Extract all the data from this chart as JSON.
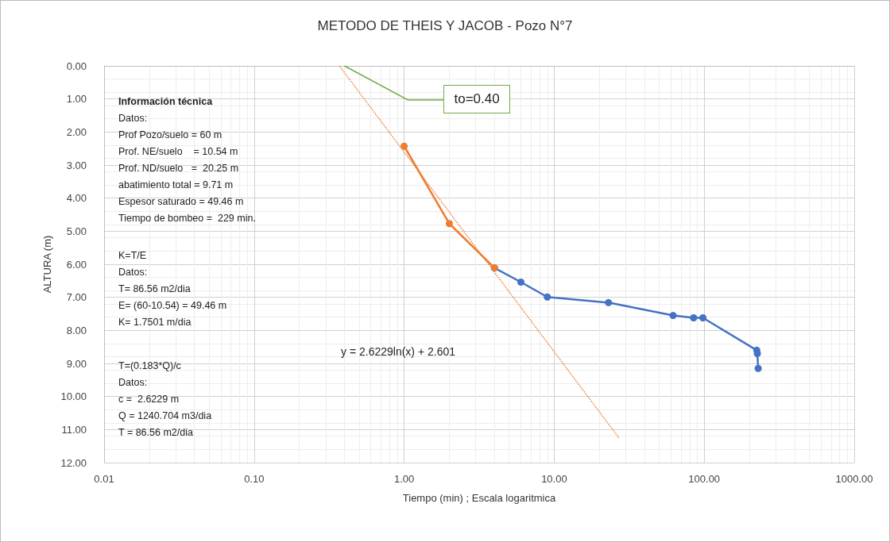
{
  "chart_data": {
    "type": "line",
    "title": "METODO DE THEIS Y JACOB - Pozo N°7",
    "xlabel": "Tiempo (min) ; Escala logaritmica",
    "ylabel": "ALTURA (m)",
    "log": "x",
    "grid": true,
    "marker": "circle",
    "line_style": "solid",
    "xlim": [
      0.01,
      1000
    ],
    "xticks": [
      0.01,
      {
        "value": 0.1,
        "label": "0.10"
      },
      {
        "value": 1,
        "label": "1.00"
      },
      {
        "value": 10,
        "label": "10.00"
      },
      {
        "value": 100,
        "label": "100.00"
      },
      {
        "value": 1000,
        "label": "1000.00"
      }
    ],
    "ylim": [
      12,
      0
    ],
    "yticks": [
      {
        "value": 0,
        "label": "0.00"
      },
      {
        "value": 1,
        "label": "1.00"
      },
      {
        "value": 2,
        "label": "2.00"
      },
      {
        "value": 3,
        "label": "3.00"
      },
      {
        "value": 4,
        "label": "4.00"
      },
      {
        "value": 5,
        "label": "5.00"
      },
      {
        "value": 6,
        "label": "6.00"
      },
      {
        "value": 7,
        "label": "7.00"
      },
      {
        "value": 8,
        "label": "8.00"
      },
      {
        "value": 9,
        "label": "9.00"
      },
      {
        "value": 10,
        "label": "10.00"
      },
      {
        "value": 11,
        "label": "11.00"
      },
      {
        "value": 12,
        "label": "12.00"
      }
    ],
    "series": [
      {
        "color": "#4472c4",
        "x": [
          4,
          6,
          9,
          23,
          62,
          85,
          98,
          224,
          226,
          229
        ],
        "values": [
          6.11,
          6.54,
          6.99,
          7.16,
          7.55,
          7.62,
          7.62,
          8.6,
          8.7,
          9.15
        ]
      },
      {
        "color": "#ed7d31",
        "x": [
          1,
          2,
          4
        ],
        "values": [
          2.43,
          4.77,
          6.11
        ]
      },
      {
        "type": "line",
        "color": "#ed7d31",
        "marker": "none",
        "line_style": "dotted",
        "x": [
          0.37,
          27
        ],
        "values": [
          0.0,
          11.25
        ]
      }
    ],
    "annotations": [
      "Información técnica\nDatos:\nProf Pozo/suelo = 60 m\nProf. NE/suelo    = 10.54 m\nProf. ND/suelo   =  20.25 m\nabatimiento total = 9.71 m\nEspesor saturado = 49.46 m\nTiempo de bombeo =  229 min.",
      "K=T/E\nDatos:\nT= 86.56 m2/dia\nE= (60-10.54) = 49.46 m\nK= 1.7501 m/dia",
      "T=(0.183*Q)/c\nDatos:\nc =  2.6229 m\nQ = 1240.704 m3/dia\nT = 86.56 m2/dia",
      "y = 2.6229ln(x) + 2.601",
      {
        "text": "to=0.40",
        "x": 0.4,
        "y": 0
      }
    ]
  }
}
